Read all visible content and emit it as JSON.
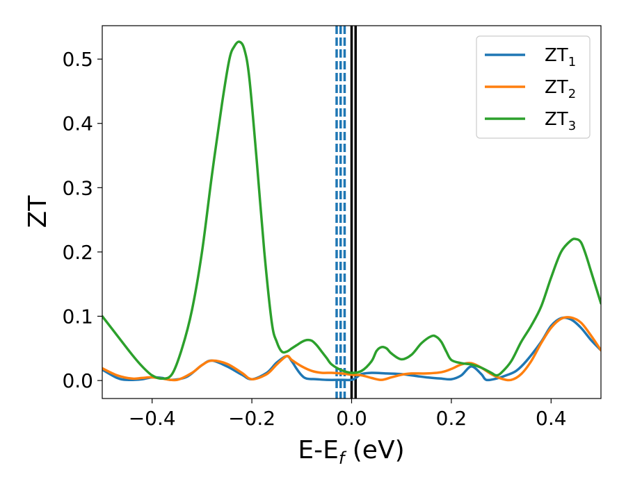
{
  "chart_data": {
    "type": "line",
    "xlabel_main": "E-E",
    "xlabel_sub": "f",
    "xlabel_unit": " (eV)",
    "ylabel": "ZT",
    "xlim": [
      -0.5,
      0.5
    ],
    "ylim": [
      -0.028,
      0.552
    ],
    "xticks": [
      -0.4,
      -0.2,
      0.0,
      0.2,
      0.4
    ],
    "xtick_labels": [
      "−0.4",
      "−0.2",
      "0.0",
      "0.2",
      "0.4"
    ],
    "yticks": [
      0.0,
      0.1,
      0.2,
      0.3,
      0.4,
      0.5
    ],
    "ytick_labels": [
      "0.0",
      "0.1",
      "0.2",
      "0.3",
      "0.4",
      "0.5"
    ],
    "grid": false,
    "legend_position": "top-right",
    "vertical_lines": [
      {
        "x": -0.03,
        "style": "dashed",
        "color": "#1f77b4"
      },
      {
        "x": -0.022,
        "style": "dashed",
        "color": "#1f77b4"
      },
      {
        "x": -0.014,
        "style": "dashed",
        "color": "#1f77b4"
      },
      {
        "x": 0.0,
        "style": "solid",
        "color": "#000000"
      },
      {
        "x": 0.008,
        "style": "solid",
        "color": "#000000"
      }
    ],
    "series": [
      {
        "name": "ZT",
        "sub": "1",
        "color": "#1f77b4",
        "x": [
          -0.5,
          -0.47,
          -0.45,
          -0.42,
          -0.4,
          -0.38,
          -0.36,
          -0.33,
          -0.3,
          -0.28,
          -0.25,
          -0.22,
          -0.2,
          -0.17,
          -0.15,
          -0.13,
          -0.12,
          -0.11,
          -0.1,
          -0.09,
          -0.07,
          -0.05,
          -0.02,
          0.0,
          0.01,
          0.02,
          0.04,
          0.07,
          0.1,
          0.13,
          0.15,
          0.18,
          0.2,
          0.22,
          0.24,
          0.26,
          0.27,
          0.29,
          0.31,
          0.33,
          0.35,
          0.38,
          0.4,
          0.42,
          0.44,
          0.46,
          0.48,
          0.5
        ],
        "y": [
          0.017,
          0.004,
          0.001,
          0.002,
          0.005,
          0.004,
          0.001,
          0.006,
          0.024,
          0.031,
          0.022,
          0.009,
          0.002,
          0.012,
          0.028,
          0.038,
          0.03,
          0.018,
          0.008,
          0.003,
          0.002,
          0.001,
          0.001,
          0.001,
          0.005,
          0.01,
          0.012,
          0.011,
          0.01,
          0.007,
          0.005,
          0.003,
          0.002,
          0.008,
          0.022,
          0.01,
          0.001,
          0.003,
          0.008,
          0.015,
          0.03,
          0.06,
          0.085,
          0.097,
          0.095,
          0.082,
          0.063,
          0.047
        ]
      },
      {
        "name": "ZT",
        "sub": "2",
        "color": "#ff7f0e",
        "x": [
          -0.5,
          -0.47,
          -0.44,
          -0.42,
          -0.4,
          -0.38,
          -0.35,
          -0.32,
          -0.3,
          -0.28,
          -0.25,
          -0.22,
          -0.2,
          -0.17,
          -0.15,
          -0.13,
          -0.12,
          -0.1,
          -0.08,
          -0.06,
          -0.04,
          -0.02,
          0.0,
          0.02,
          0.04,
          0.06,
          0.08,
          0.1,
          0.12,
          0.15,
          0.18,
          0.2,
          0.22,
          0.24,
          0.26,
          0.28,
          0.3,
          0.32,
          0.34,
          0.36,
          0.38,
          0.4,
          0.42,
          0.44,
          0.46,
          0.48,
          0.5
        ],
        "y": [
          0.019,
          0.008,
          0.003,
          0.004,
          0.005,
          0.003,
          0.001,
          0.012,
          0.024,
          0.031,
          0.026,
          0.012,
          0.002,
          0.01,
          0.025,
          0.038,
          0.032,
          0.022,
          0.015,
          0.012,
          0.012,
          0.011,
          0.009,
          0.008,
          0.004,
          0.001,
          0.005,
          0.009,
          0.011,
          0.011,
          0.013,
          0.018,
          0.025,
          0.027,
          0.02,
          0.01,
          0.003,
          0.001,
          0.01,
          0.03,
          0.058,
          0.082,
          0.096,
          0.098,
          0.09,
          0.07,
          0.047
        ]
      },
      {
        "name": "ZT",
        "sub": "3",
        "color": "#2ca02c",
        "x": [
          -0.5,
          -0.47,
          -0.44,
          -0.42,
          -0.4,
          -0.38,
          -0.36,
          -0.34,
          -0.32,
          -0.3,
          -0.28,
          -0.26,
          -0.245,
          -0.235,
          -0.225,
          -0.215,
          -0.205,
          -0.19,
          -0.175,
          -0.16,
          -0.15,
          -0.14,
          -0.13,
          -0.12,
          -0.11,
          -0.1,
          -0.09,
          -0.08,
          -0.07,
          -0.06,
          -0.05,
          -0.04,
          -0.02,
          0.0,
          0.02,
          0.04,
          0.05,
          0.06,
          0.07,
          0.08,
          0.1,
          0.12,
          0.14,
          0.16,
          0.17,
          0.18,
          0.19,
          0.2,
          0.22,
          0.24,
          0.26,
          0.28,
          0.29,
          0.3,
          0.32,
          0.34,
          0.36,
          0.38,
          0.4,
          0.42,
          0.44,
          0.45,
          0.46,
          0.47,
          0.48,
          0.5
        ],
        "y": [
          0.1,
          0.07,
          0.04,
          0.022,
          0.008,
          0.003,
          0.01,
          0.05,
          0.11,
          0.2,
          0.32,
          0.43,
          0.5,
          0.52,
          0.527,
          0.515,
          0.47,
          0.34,
          0.2,
          0.09,
          0.06,
          0.045,
          0.045,
          0.05,
          0.055,
          0.06,
          0.063,
          0.062,
          0.055,
          0.045,
          0.035,
          0.025,
          0.016,
          0.012,
          0.015,
          0.03,
          0.046,
          0.052,
          0.05,
          0.042,
          0.033,
          0.04,
          0.058,
          0.069,
          0.068,
          0.06,
          0.045,
          0.032,
          0.027,
          0.025,
          0.02,
          0.012,
          0.008,
          0.012,
          0.03,
          0.06,
          0.085,
          0.115,
          0.16,
          0.2,
          0.218,
          0.22,
          0.215,
          0.195,
          0.17,
          0.12
        ]
      }
    ]
  }
}
